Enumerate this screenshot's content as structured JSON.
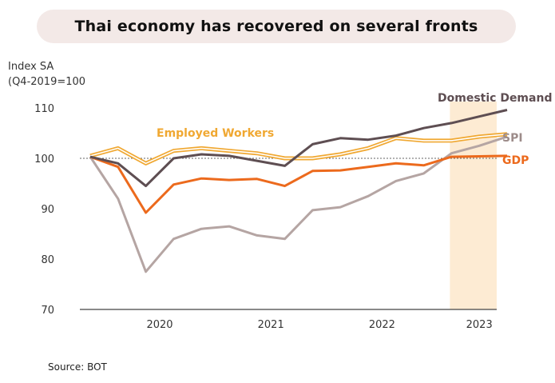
{
  "title": "Thai economy has recovered on several fronts",
  "source": "Source: BOT",
  "chart_data": {
    "type": "line",
    "ylabel_line1": "Index SA",
    "ylabel_line2": "(Q4-2019=100",
    "ylim": [
      70,
      110
    ],
    "yticks": [
      70,
      80,
      90,
      100,
      110
    ],
    "x": [
      "2019Q4",
      "2020Q1",
      "2020Q2",
      "2020Q3",
      "2020Q4",
      "2021Q1",
      "2021Q2",
      "2021Q3",
      "2021Q4",
      "2022Q1",
      "2022Q2",
      "2022Q3",
      "2022Q4",
      "2023Q1",
      "2023Q2",
      "2023Q3"
    ],
    "year_labels": [
      "2020",
      "2021",
      "2022",
      "2023"
    ],
    "reference_line": 100,
    "highlight_period": [
      "2023Q1",
      "2023Q3"
    ],
    "series": [
      {
        "name": "Domestic Demand",
        "color": "#5e4e52",
        "values": [
          100.3,
          99.0,
          94.5,
          100.0,
          100.8,
          100.5,
          99.5,
          98.5,
          102.8,
          104.0,
          103.7,
          104.5,
          106.0,
          107.0,
          108.3,
          109.6
        ]
      },
      {
        "name": "Employed Workers",
        "color": "#f0a832",
        "values": [
          100.5,
          102.0,
          99.0,
          101.5,
          102.0,
          101.5,
          101.0,
          100.0,
          100.0,
          100.8,
          102.0,
          104.0,
          103.5,
          103.5,
          104.3,
          104.8
        ]
      },
      {
        "name": "SPI",
        "color": "#b5a5a3",
        "values": [
          100.3,
          92.0,
          77.5,
          84.0,
          86.0,
          86.5,
          84.7,
          84.0,
          89.7,
          90.3,
          92.5,
          95.5,
          97.0,
          101.0,
          102.5,
          104.3
        ]
      },
      {
        "name": "GDP",
        "color": "#ec6a1d",
        "values": [
          100.3,
          98.3,
          89.2,
          94.8,
          96.0,
          95.7,
          95.9,
          94.5,
          97.5,
          97.6,
          98.3,
          99.0,
          98.6,
          100.3,
          100.4,
          100.5
        ]
      }
    ]
  }
}
